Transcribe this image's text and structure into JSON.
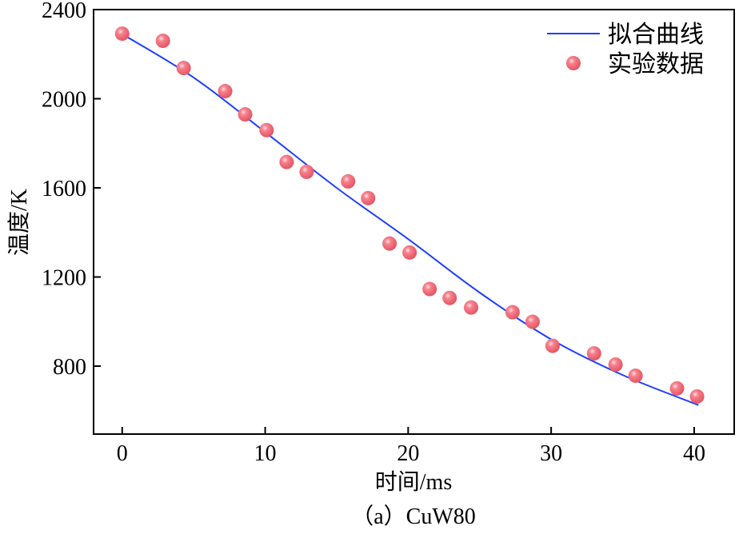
{
  "chart_data": {
    "type": "scatter",
    "title": "",
    "caption": "（a）CuW80",
    "xlabel": "时间/ms",
    "ylabel": "温度/K",
    "xlim": [
      -2,
      42.8
    ],
    "ylim": [
      495,
      2400
    ],
    "xticks": [
      0,
      10,
      20,
      30,
      40
    ],
    "yticks": [
      800,
      1200,
      1600,
      2000,
      2400
    ],
    "grid": false,
    "legend_position": "top-right",
    "series": [
      {
        "name": "拟合曲线",
        "kind": "line",
        "color": "#1f3fff",
        "x": [
          0,
          5,
          10,
          15,
          20,
          25,
          30,
          35,
          40.3
        ],
        "y": [
          2290,
          2095,
          1850,
          1600,
          1370,
          1130,
          920,
          760,
          625
        ]
      },
      {
        "name": "实验数据",
        "kind": "scatter",
        "color": "#f06a78",
        "x": [
          0,
          2.85,
          4.3,
          7.2,
          8.6,
          10.1,
          11.5,
          12.9,
          15.8,
          17.2,
          18.7,
          20.1,
          21.5,
          22.9,
          24.4,
          27.3,
          28.7,
          30.1,
          33.0,
          34.5,
          35.9,
          38.8,
          40.2
        ],
        "y": [
          2292,
          2260,
          2138,
          2034,
          1930,
          1859,
          1716,
          1672,
          1629,
          1554,
          1350,
          1310,
          1146,
          1106,
          1063,
          1042,
          999,
          891,
          857,
          807,
          757,
          700,
          664
        ]
      }
    ]
  }
}
